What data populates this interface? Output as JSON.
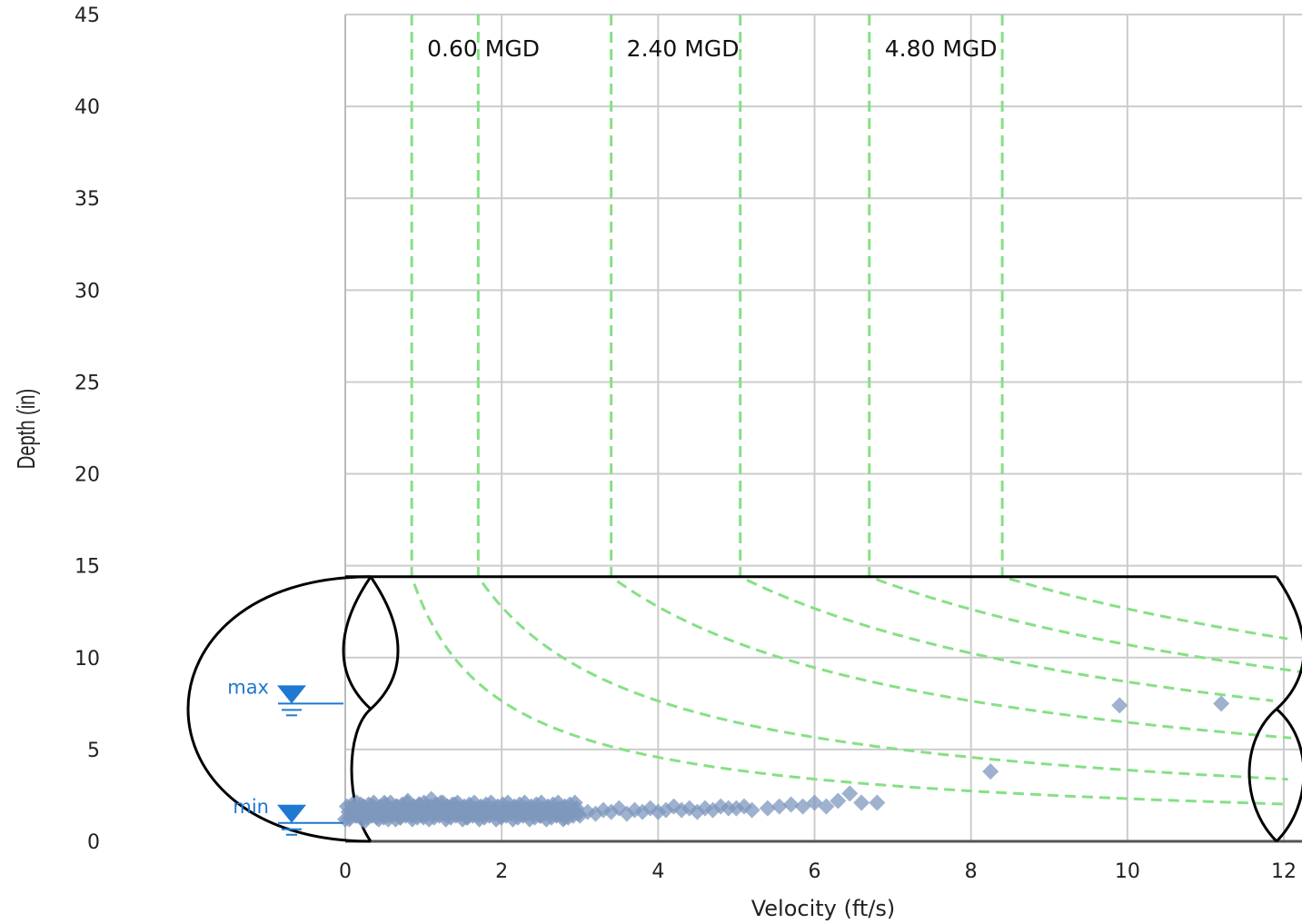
{
  "chart_data": {
    "type": "scatter",
    "xlabel": "Velocity (ft/s)",
    "ylabel": "Depth (in)",
    "xlim": [
      0,
      12
    ],
    "ylim": [
      0,
      45
    ],
    "x_ticks": [
      "0",
      "2",
      "4",
      "6",
      "8",
      "10",
      "12"
    ],
    "y_ticks": [
      "0",
      "5",
      "10",
      "15",
      "20",
      "25",
      "30",
      "35",
      "40",
      "45"
    ],
    "grid": true,
    "pipe_diameter_in": 14.4,
    "flow_curves": [
      {
        "label": "0.60 MGD",
        "velocity_at_full_pipe": 0.85
      },
      {
        "label": "",
        "velocity_at_full_pipe": 1.7
      },
      {
        "label": "2.40 MGD",
        "velocity_at_full_pipe": 3.4
      },
      {
        "label": "",
        "velocity_at_full_pipe": 5.05
      },
      {
        "label": "4.80 MGD",
        "velocity_at_full_pipe": 6.7
      },
      {
        "label": "",
        "velocity_at_full_pipe": 8.4
      }
    ],
    "levels": [
      {
        "label": "max",
        "depth": 7.5
      },
      {
        "label": "min",
        "depth": 1.0
      }
    ],
    "series": [
      {
        "marker": "diamond",
        "color": "#7d97bd",
        "points": [
          [
            0.05,
            1.2
          ],
          [
            0.1,
            1.8
          ],
          [
            0.15,
            1.4
          ],
          [
            0.2,
            2.0
          ],
          [
            0.25,
            1.1
          ],
          [
            0.3,
            1.6
          ],
          [
            0.35,
            1.9
          ],
          [
            0.4,
            1.3
          ],
          [
            0.45,
            1.7
          ],
          [
            0.5,
            2.1
          ],
          [
            0.55,
            1.2
          ],
          [
            0.6,
            1.5
          ],
          [
            0.65,
            1.9
          ],
          [
            0.7,
            1.3
          ],
          [
            0.75,
            1.8
          ],
          [
            0.8,
            2.2
          ],
          [
            0.85,
            1.4
          ],
          [
            0.9,
            1.7
          ],
          [
            0.95,
            2.0
          ],
          [
            1.0,
            1.3
          ],
          [
            1.05,
            1.9
          ],
          [
            1.1,
            2.3
          ],
          [
            1.15,
            1.5
          ],
          [
            1.2,
            1.8
          ],
          [
            1.25,
            2.1
          ],
          [
            1.3,
            1.4
          ],
          [
            1.35,
            1.7
          ],
          [
            1.4,
            2.0
          ],
          [
            1.45,
            1.5
          ],
          [
            1.5,
            1.8
          ],
          [
            1.55,
            1.3
          ],
          [
            1.6,
            1.9
          ],
          [
            1.65,
            1.6
          ],
          [
            1.7,
            1.4
          ],
          [
            1.75,
            1.8
          ],
          [
            1.8,
            1.5
          ],
          [
            1.9,
            1.7
          ],
          [
            2.0,
            1.4
          ],
          [
            2.1,
            1.6
          ],
          [
            2.2,
            1.8
          ],
          [
            2.3,
            1.5
          ],
          [
            2.4,
            1.7
          ],
          [
            2.5,
            1.4
          ],
          [
            2.6,
            1.6
          ],
          [
            2.7,
            1.5
          ],
          [
            2.8,
            1.3
          ],
          [
            2.9,
            1.6
          ],
          [
            3.0,
            1.4
          ],
          [
            3.1,
            1.6
          ],
          [
            3.2,
            1.5
          ],
          [
            3.3,
            1.7
          ],
          [
            3.4,
            1.6
          ],
          [
            3.5,
            1.8
          ],
          [
            3.6,
            1.5
          ],
          [
            3.7,
            1.7
          ],
          [
            3.8,
            1.6
          ],
          [
            3.9,
            1.8
          ],
          [
            4.0,
            1.6
          ],
          [
            4.1,
            1.7
          ],
          [
            4.2,
            1.9
          ],
          [
            4.3,
            1.7
          ],
          [
            4.4,
            1.8
          ],
          [
            4.5,
            1.6
          ],
          [
            4.6,
            1.8
          ],
          [
            4.7,
            1.7
          ],
          [
            4.8,
            1.9
          ],
          [
            4.9,
            1.8
          ],
          [
            5.0,
            1.8
          ],
          [
            5.1,
            1.9
          ],
          [
            5.2,
            1.7
          ],
          [
            5.4,
            1.8
          ],
          [
            5.55,
            1.9
          ],
          [
            5.7,
            2.0
          ],
          [
            5.85,
            1.9
          ],
          [
            6.0,
            2.1
          ],
          [
            6.15,
            1.9
          ],
          [
            6.3,
            2.2
          ],
          [
            6.45,
            2.6
          ],
          [
            6.6,
            2.1
          ],
          [
            6.8,
            2.1
          ],
          [
            8.25,
            3.8
          ],
          [
            9.9,
            7.4
          ],
          [
            11.2,
            7.5
          ]
        ]
      }
    ]
  }
}
